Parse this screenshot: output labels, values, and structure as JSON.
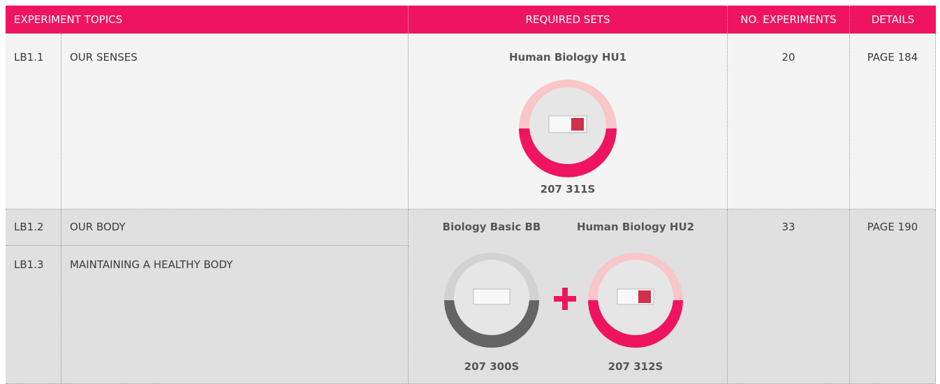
{
  "header": [
    "EXPERIMENT TOPICS",
    "REQUIRED SETS",
    "NO. EXPERIMENTS",
    "DETAILS"
  ],
  "rows": [
    {
      "code": "LB1.1",
      "topic": "OUR SENSES"
    },
    {
      "code": "LB1.2",
      "topic": "OUR BODY"
    },
    {
      "code": "LB1.3",
      "topic": "MAINTAINING A HEALTHY BODY"
    }
  ],
  "groups": [
    {
      "sets": [
        {
          "name": "Human Biology HU1",
          "number": "207 311S"
        }
      ],
      "experiments": "20",
      "details": "PAGE 184"
    },
    {
      "sets": [
        {
          "name": "Biology Basic BB",
          "number": "207 300S"
        },
        {
          "name": "Human Biology HU2",
          "number": "207 312S"
        }
      ],
      "experiments": "33",
      "details": "PAGE 190"
    }
  ]
}
